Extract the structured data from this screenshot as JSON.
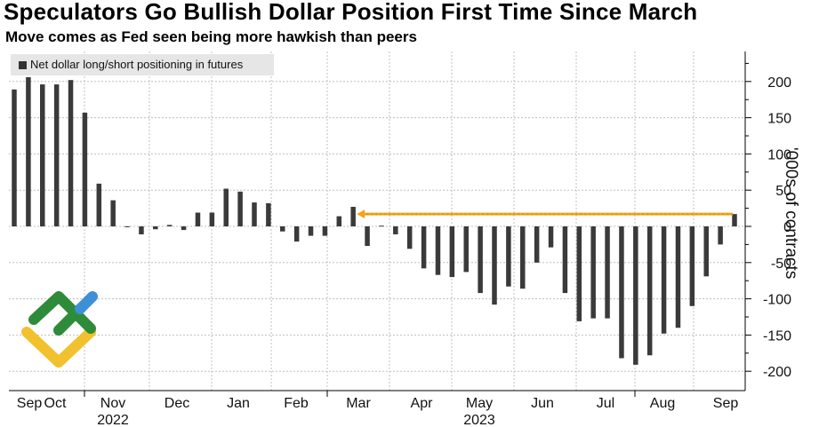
{
  "title": "Speculators Go Bullish Dollar Position First Time Since March",
  "subtitle": "Move comes as Fed seen being more hawkish than peers",
  "chart_data": {
    "type": "bar",
    "title": "Speculators Go Bullish Dollar Position First Time Since March",
    "subtitle": "Move comes as Fed seen being more hawkish than peers",
    "ylabel": "'000s of contracts",
    "xlabel": "",
    "ylim": [
      -220,
      240
    ],
    "yticks": [
      200,
      150,
      100,
      50,
      0,
      -50,
      -100,
      -150,
      -200
    ],
    "grid": true,
    "legend": {
      "position": "top-left",
      "entries": [
        "Net dollar long/short positioning in futures"
      ]
    },
    "x_labels": [
      "Sep",
      "Oct",
      "Nov",
      "Dec",
      "Jan",
      "Feb",
      "Mar",
      "Apr",
      "May",
      "Jun",
      "Jul",
      "Aug",
      "Sep"
    ],
    "year_labels": [
      "2022",
      "2023"
    ],
    "series": [
      {
        "name": "Net dollar long/short positioning in futures",
        "color": "#3a3a3a",
        "values": [
          189,
          206,
          196,
          196,
          202,
          157,
          59,
          36,
          -1,
          -11,
          -4,
          2,
          -5,
          19,
          19,
          52,
          48,
          33,
          32,
          -7,
          -21,
          -13,
          -13,
          14,
          27,
          -27,
          1,
          -11,
          -31,
          -58,
          -67,
          -70,
          -63,
          -92,
          -108,
          -83,
          -86,
          -50,
          -29,
          -92,
          -131,
          -127,
          -127,
          -182,
          -191,
          -178,
          -148,
          -140,
          -110,
          -69,
          -25,
          17
        ]
      }
    ],
    "annotation": {
      "type": "arrow",
      "color": "#f5a31a",
      "from_value": 17,
      "to_value": 17,
      "label": ""
    }
  },
  "colors": {
    "bar": "#3a3a3a",
    "grid": "#bfbfbf",
    "arrow": "#f5a31a",
    "logo_green": "#2e8b3a",
    "logo_blue": "#3d8fd6",
    "logo_yellow": "#f2c12e"
  }
}
